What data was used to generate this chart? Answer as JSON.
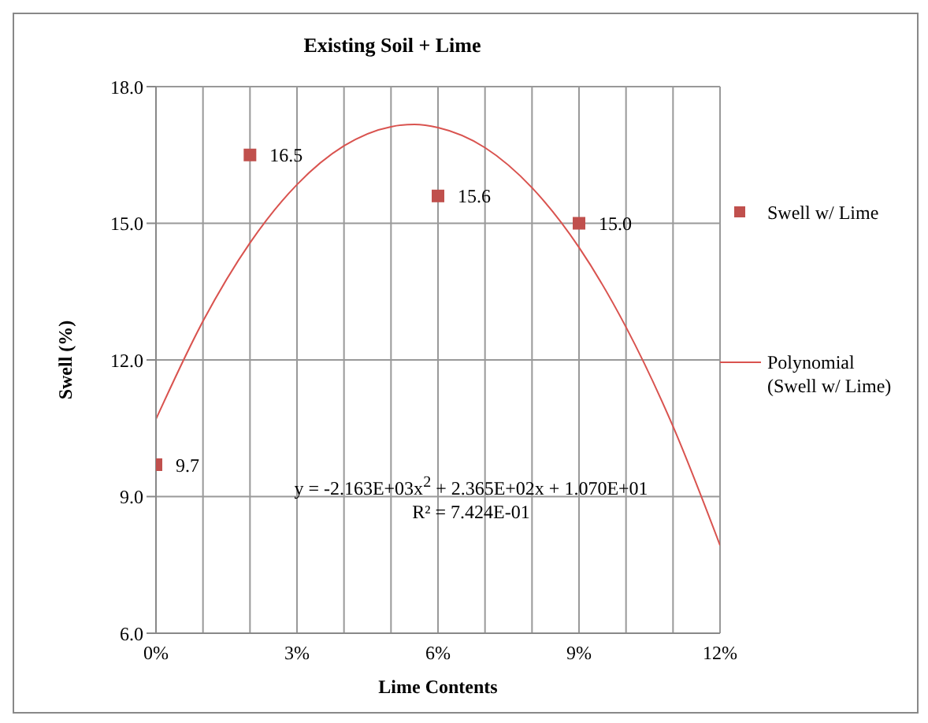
{
  "chart_data": {
    "type": "scatter",
    "title": "Existing Soil + Lime",
    "xlabel": "Lime Contents",
    "ylabel": "Swell (%)",
    "xlim": [
      0,
      0.12
    ],
    "xticks": [
      {
        "value": 0,
        "label": "0%"
      },
      {
        "value": 0.01,
        "label": null
      },
      {
        "value": 0.02,
        "label": null
      },
      {
        "value": 0.03,
        "label": "3%"
      },
      {
        "value": 0.04,
        "label": null
      },
      {
        "value": 0.05,
        "label": null
      },
      {
        "value": 0.06,
        "label": "6%"
      },
      {
        "value": 0.07,
        "label": null
      },
      {
        "value": 0.08,
        "label": null
      },
      {
        "value": 0.09,
        "label": "9%"
      },
      {
        "value": 0.1,
        "label": null
      },
      {
        "value": 0.11,
        "label": null
      },
      {
        "value": 0.12,
        "label": "12%"
      }
    ],
    "ylim": [
      6,
      18
    ],
    "yticks": [
      {
        "value": 6,
        "label": "6.0"
      },
      {
        "value": 9,
        "label": "9.0"
      },
      {
        "value": 12,
        "label": "12.0"
      },
      {
        "value": 15,
        "label": "15.0"
      },
      {
        "value": 18,
        "label": "18.0"
      }
    ],
    "grid": true,
    "legend": "right",
    "series": [
      {
        "name": "Swell w/ Lime",
        "color": "#c0504d",
        "marker": "square",
        "x": [
          0,
          0.02,
          0.06,
          0.09
        ],
        "values": [
          9.7,
          16.5,
          15.6,
          15.0
        ],
        "value_labels": [
          "9.7",
          "16.5",
          "15.6",
          "15.0"
        ]
      },
      {
        "type": "line",
        "name": "Polynomial (Swell w/ Lime)",
        "color": "#d9534f",
        "marker": "none",
        "line_style": "solid",
        "x": [
          0,
          0.01,
          0.02,
          0.03,
          0.04,
          0.05,
          0.055,
          0.06,
          0.07,
          0.08,
          0.09,
          0.1,
          0.11,
          0.12
        ],
        "values": [
          10.7,
          12.85,
          14.57,
          15.85,
          16.7,
          17.12,
          17.17,
          17.1,
          16.66,
          15.78,
          14.47,
          12.72,
          10.54,
          7.93
        ]
      }
    ],
    "annotations": [
      "y = -2.163E+03x$^{2}$ + 2.365E+02x + 1.070E+01",
      "R² = 7.424E-01"
    ]
  }
}
